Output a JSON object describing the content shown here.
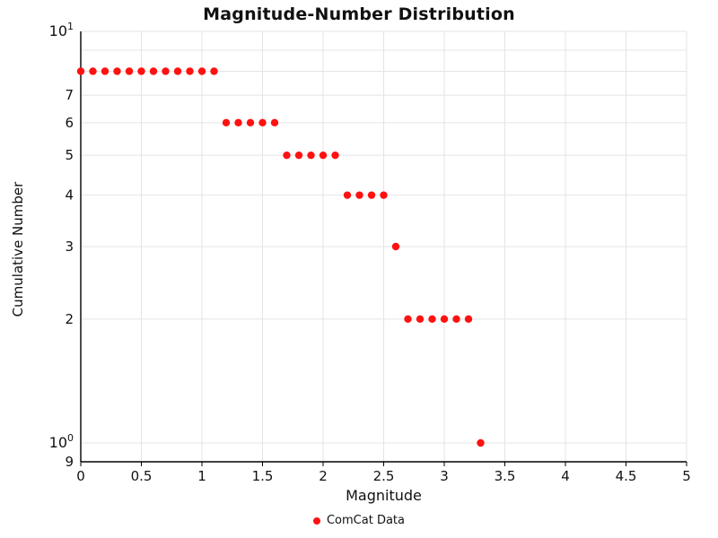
{
  "chart_data": {
    "type": "scatter",
    "title": "Magnitude-Number Distribution",
    "xlabel": "Magnitude",
    "ylabel": "Cumulative Number",
    "legend_label": "ComCat Data",
    "marker_color": "#ff1111",
    "grid_color": "#e4e4e4",
    "axis_color": "#000000",
    "x_axis": {
      "min": 0,
      "max": 5,
      "ticks": [
        {
          "value": 0,
          "label": "0"
        },
        {
          "value": 0.5,
          "label": "0.5"
        },
        {
          "value": 1,
          "label": "1"
        },
        {
          "value": 1.5,
          "label": "1.5"
        },
        {
          "value": 2,
          "label": "2"
        },
        {
          "value": 2.5,
          "label": "2.5"
        },
        {
          "value": 3,
          "label": "3"
        },
        {
          "value": 3.5,
          "label": "3.5"
        },
        {
          "value": 4,
          "label": "4"
        },
        {
          "value": 4.5,
          "label": "4.5"
        },
        {
          "value": 5,
          "label": "5"
        }
      ]
    },
    "y_axis": {
      "scale": "log",
      "min": 0.9,
      "max": 10,
      "grid_values": [
        10,
        9,
        8,
        7,
        6,
        5,
        4,
        3,
        2,
        1,
        0.9
      ],
      "tick_labels": [
        {
          "value": 10,
          "base": "10",
          "exp": "1"
        },
        {
          "value": 7,
          "base": "7"
        },
        {
          "value": 6,
          "base": "6"
        },
        {
          "value": 5,
          "base": "5"
        },
        {
          "value": 4,
          "base": "4"
        },
        {
          "value": 3,
          "base": "3"
        },
        {
          "value": 2,
          "base": "2"
        },
        {
          "value": 1,
          "base": "10",
          "exp": "0"
        },
        {
          "value": 0.9,
          "base": "9"
        }
      ]
    },
    "series": [
      {
        "name": "ComCat Data",
        "color": "#ff1111",
        "x": [
          0,
          0.1,
          0.2,
          0.3,
          0.4,
          0.5,
          0.6,
          0.7,
          0.8,
          0.9,
          1.0,
          1.1,
          1.2,
          1.3,
          1.4,
          1.5,
          1.6,
          1.7,
          1.8,
          1.9,
          2.0,
          2.1,
          2.2,
          2.3,
          2.4,
          2.5,
          2.6,
          2.7,
          2.8,
          2.9,
          3.0,
          3.1,
          3.2,
          3.3
        ],
        "y": [
          8,
          8,
          8,
          8,
          8,
          8,
          8,
          8,
          8,
          8,
          8,
          8,
          6,
          6,
          6,
          6,
          6,
          5,
          5,
          5,
          5,
          5,
          4,
          4,
          4,
          4,
          3,
          2,
          2,
          2,
          2,
          2,
          2,
          1
        ]
      }
    ]
  }
}
